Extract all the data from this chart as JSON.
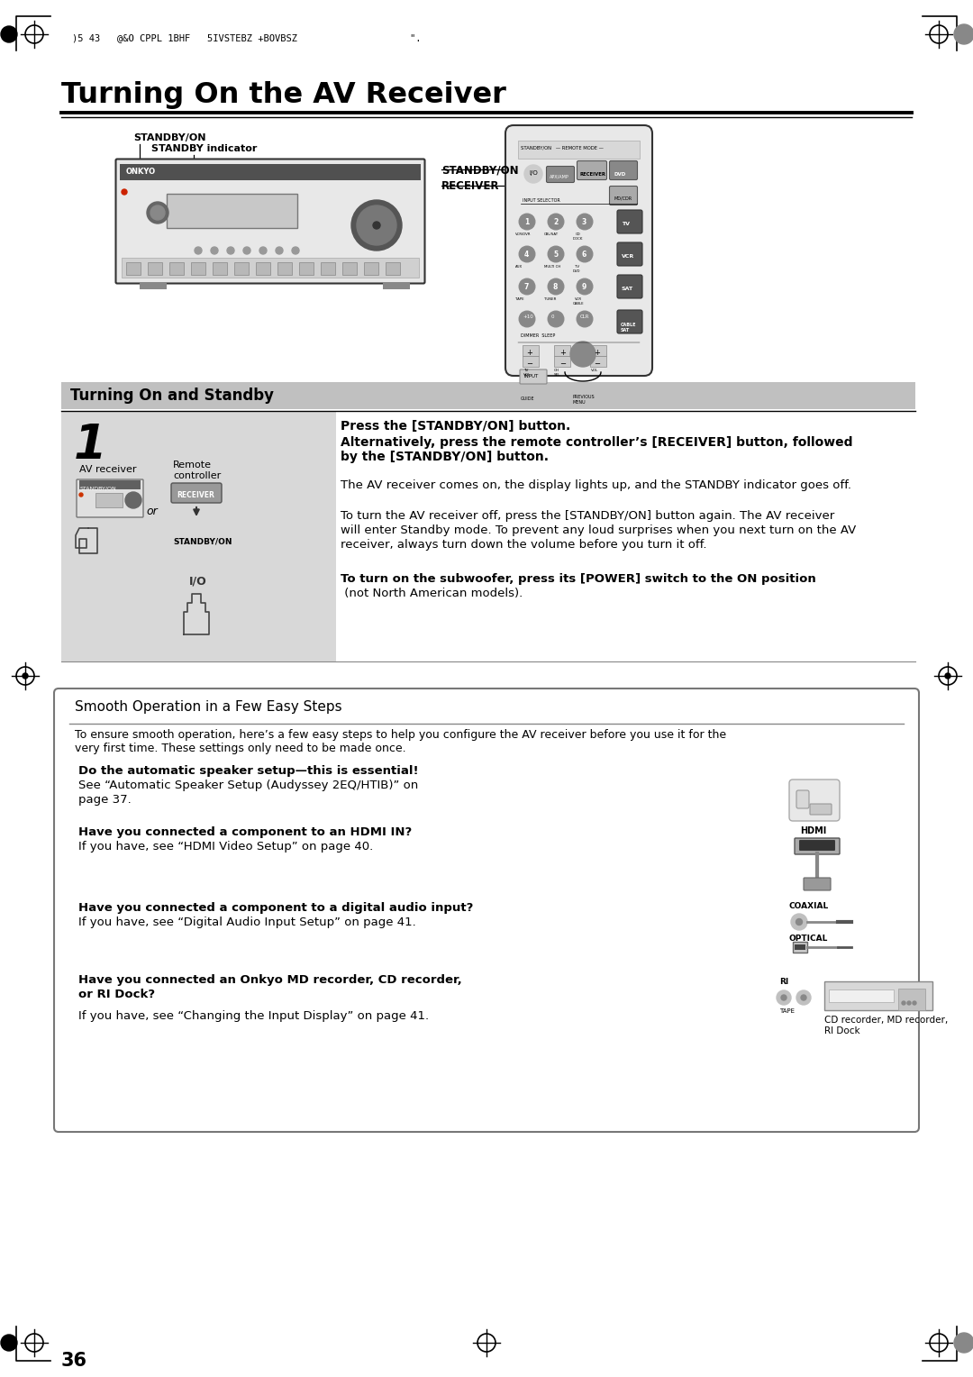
{
  "page_bg": "#ffffff",
  "header_text": ")5 43   @&O CPPL 1BHF   5IVSTEBZ +BOVBSZ                    \".",
  "title": "Turning On the AV Receiver",
  "section1_header": "Turning On and Standby",
  "section1_header_bg": "#c8c8c8",
  "step_number": "1",
  "press_bold_line1": "Press the [STANDBY/ON] button.",
  "press_bold_line2": "Alternatively, press the remote controller’s [RECEIVER] button, followed",
  "press_bold_line3": "by the [STANDBY/ON] button.",
  "para1": "The AV receiver comes on, the display lights up, and the STANDBY indicator goes off.",
  "para2a": "To turn the AV receiver off, press the [STANDBY/ON] button again. The AV receiver",
  "para2b": "will enter Standby mode. To prevent any loud surprises when you next turn on the AV",
  "para2c": "receiver, always turn down the volume before you turn it off.",
  "para3_bold": "To turn on the subwoofer, press its [POWER] switch to the ON position",
  "para3_normal": " (not North American models).",
  "box_title": "Smooth Operation in a Few Easy Steps",
  "box_intro1": "To ensure smooth operation, here’s a few easy steps to help you configure the AV receiver before you use it for the",
  "box_intro2": "very first time. These settings only need to be made once.",
  "item1_bold": "Do the automatic speaker setup—this is essential!",
  "item1_normal1": "See “Automatic Speaker Setup (Audyssey 2EQ/HTIB)” on",
  "item1_normal2": "page 37.",
  "item2_bold": "Have you connected a component to an HDMI IN?",
  "item2_normal": "If you have, see “HDMI Video Setup” on page 40.",
  "item3_bold": "Have you connected a component to a digital audio input?",
  "item3_normal": "If you have, see “Digital Audio Input Setup” on page 41.",
  "item4_bold1": "Have you connected an Onkyo MD recorder, CD recorder,",
  "item4_bold2": "or RI Dock?",
  "item4_normal": "If you have, see “Changing the Input Display” on page 41.",
  "item4_caption": "CD recorder, MD recorder,\nRI Dock",
  "page_number": "36",
  "standby_label1": "STANDBY/ON",
  "standby_label2": "STANDBY indicator",
  "remote_label1": "STANDBY/ON",
  "remote_label2": "RECEIVER",
  "step_label_av": "AV receiver",
  "step_label_remote_1": "Remote",
  "step_label_remote_2": "controller",
  "step_or": "or",
  "label_coaxial": "COAXIAL",
  "label_optical": "OPTICAL",
  "label_hdmi": "HDMI",
  "label_ri": "RI",
  "step_bg": "#d8d8d8",
  "box_border_color": "#777777",
  "section_bg": "#c0c0c0"
}
